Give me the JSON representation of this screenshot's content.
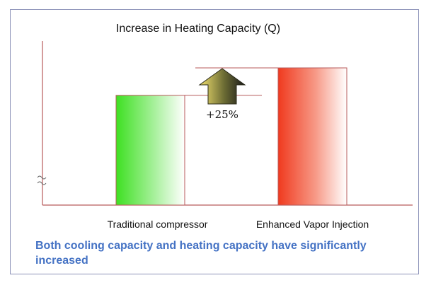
{
  "chart_data": {
    "type": "bar",
    "title": "Increase in Heating Capacity (Q)",
    "categories": [
      "Traditional compressor",
      "Enhanced Vapor Injection"
    ],
    "values": [
      100,
      125
    ],
    "ylim": [
      0,
      125
    ],
    "annotation": "+25%",
    "grid": false,
    "colors": {
      "traditional": "#3ee022",
      "evi": "#f03a1e",
      "axis": "#b75a5a",
      "arrow_top": "#f1e06f",
      "arrow_bottom": "#1a1a1a"
    }
  },
  "caption": "Both cooling capacity and heating capacity have significantly increased"
}
